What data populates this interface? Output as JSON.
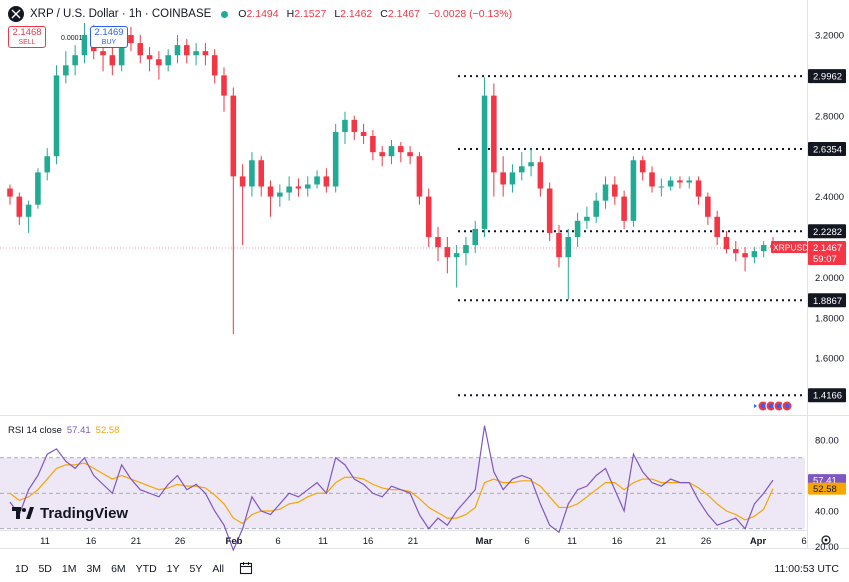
{
  "header": {
    "symbol_title": "XRP / U.S. Dollar · 1h · COINBASE",
    "open_label": "O",
    "open_value": "2.1494",
    "high_label": "H",
    "high_value": "2.1527",
    "low_label": "L",
    "low_value": "2.1462",
    "close_label": "C",
    "close_value": "2.1467",
    "change": "−0.0028 (−0.13%)"
  },
  "trade": {
    "sell_price": "2.1468",
    "sell_label": "SELL",
    "spread": "0.0001",
    "buy_price": "2.1469",
    "buy_label": "BUY"
  },
  "price_axis": [
    "3.2000",
    "2.8000",
    "2.4000",
    "2.0000",
    "1.8000",
    "1.6000"
  ],
  "levels": [
    "2.9962",
    "2.6354",
    "2.2282",
    "1.8867",
    "1.4166"
  ],
  "current_price": {
    "symbol": "XRPUSD",
    "price": "2.1467",
    "countdown": "59:07"
  },
  "rsi": {
    "label": "RSI 14 close",
    "value": "57.41",
    "ma_value": "52.58",
    "axis": [
      "80.00",
      "40.00",
      "20.00"
    ]
  },
  "time_axis": [
    "11",
    "16",
    "21",
    "26",
    "Feb",
    "6",
    "11",
    "16",
    "21",
    "Mar",
    "6",
    "11",
    "16",
    "21",
    "26",
    "Apr",
    "6"
  ],
  "brand": "TradingView",
  "ranges": [
    "1D",
    "5D",
    "1M",
    "3M",
    "6M",
    "YTD",
    "1Y",
    "5Y",
    "All"
  ],
  "clock": "11:00:53 UTC",
  "colors": {
    "up": "#22ab94",
    "down": "#f23645",
    "rsi_line": "#7e57c2",
    "rsi_ma": "#f7a600",
    "rsi_band": "#ede7f6"
  },
  "chart_data": {
    "type": "candlestick",
    "ylim": [
      1.4,
      3.3
    ],
    "x": [
      "Jan 9",
      "Jan 10",
      "Jan 11",
      "Jan 12",
      "Jan 13",
      "Jan 14",
      "Jan 15",
      "Jan 16",
      "Jan 17",
      "Jan 18",
      "Jan 19",
      "Jan 20",
      "Jan 21",
      "Jan 22",
      "Jan 23",
      "Jan 24",
      "Jan 25",
      "Jan 26",
      "Jan 27",
      "Jan 28",
      "Jan 29",
      "Jan 30",
      "Jan 31",
      "Feb 1",
      "Feb 2",
      "Feb 3",
      "Feb 4",
      "Feb 5",
      "Feb 6",
      "Feb 7",
      "Feb 8",
      "Feb 9",
      "Feb 10",
      "Feb 11",
      "Feb 12",
      "Feb 13",
      "Feb 14",
      "Feb 15",
      "Feb 16",
      "Feb 17",
      "Feb 18",
      "Feb 19",
      "Feb 20",
      "Feb 21",
      "Feb 22",
      "Feb 23",
      "Feb 24",
      "Feb 25",
      "Feb 26",
      "Feb 27",
      "Feb 28",
      "Mar 1",
      "Mar 2",
      "Mar 3",
      "Mar 4",
      "Mar 5",
      "Mar 6",
      "Mar 7",
      "Mar 8",
      "Mar 9",
      "Mar 10",
      "Mar 11",
      "Mar 12",
      "Mar 13",
      "Mar 14",
      "Mar 15",
      "Mar 16",
      "Mar 17",
      "Mar 18",
      "Mar 19",
      "Mar 20",
      "Mar 21",
      "Mar 22",
      "Mar 23",
      "Mar 24",
      "Mar 25",
      "Mar 26",
      "Mar 27",
      "Mar 28",
      "Mar 29",
      "Mar 30",
      "Mar 31",
      "Apr 1"
    ],
    "open": [
      2.44,
      2.4,
      2.3,
      2.36,
      2.52,
      2.6,
      3.0,
      3.05,
      3.1,
      3.2,
      3.12,
      3.1,
      3.05,
      3.2,
      3.16,
      3.1,
      3.08,
      3.05,
      3.1,
      3.15,
      3.1,
      3.12,
      3.1,
      3.0,
      2.9,
      2.5,
      2.45,
      2.58,
      2.45,
      2.4,
      2.42,
      2.45,
      2.44,
      2.46,
      2.5,
      2.45,
      2.72,
      2.78,
      2.72,
      2.7,
      2.62,
      2.6,
      2.65,
      2.62,
      2.6,
      2.4,
      2.2,
      2.15,
      2.1,
      2.12,
      2.16,
      2.24,
      2.9,
      2.52,
      2.46,
      2.52,
      2.55,
      2.57,
      2.44,
      2.22,
      2.1,
      2.2,
      2.28,
      2.3,
      2.38,
      2.46,
      2.4,
      2.28,
      2.58,
      2.52,
      2.45,
      2.45,
      2.48,
      2.47,
      2.48,
      2.4,
      2.3,
      2.2,
      2.14,
      2.12,
      2.1,
      2.13,
      2.16
    ],
    "close": [
      2.4,
      2.3,
      2.36,
      2.52,
      2.6,
      3.0,
      3.05,
      3.1,
      3.2,
      3.12,
      3.1,
      3.05,
      3.2,
      3.16,
      3.1,
      3.08,
      3.05,
      3.1,
      3.15,
      3.1,
      3.12,
      3.1,
      3.0,
      2.9,
      2.5,
      2.45,
      2.58,
      2.45,
      2.4,
      2.42,
      2.45,
      2.44,
      2.46,
      2.5,
      2.45,
      2.72,
      2.78,
      2.72,
      2.7,
      2.62,
      2.6,
      2.65,
      2.62,
      2.6,
      2.4,
      2.2,
      2.15,
      2.1,
      2.12,
      2.16,
      2.24,
      2.9,
      2.52,
      2.46,
      2.52,
      2.55,
      2.57,
      2.44,
      2.22,
      2.1,
      2.2,
      2.28,
      2.3,
      2.38,
      2.46,
      2.4,
      2.28,
      2.58,
      2.52,
      2.45,
      2.45,
      2.48,
      2.47,
      2.48,
      2.4,
      2.3,
      2.2,
      2.14,
      2.12,
      2.1,
      2.13,
      2.16,
      2.1467
    ],
    "high": [
      2.46,
      2.42,
      2.38,
      2.54,
      2.64,
      3.05,
      3.12,
      3.15,
      3.26,
      3.25,
      3.16,
      3.14,
      3.24,
      3.24,
      3.2,
      3.14,
      3.12,
      3.13,
      3.2,
      3.18,
      3.16,
      3.16,
      3.13,
      3.04,
      2.94,
      2.56,
      2.62,
      2.6,
      2.48,
      2.46,
      2.5,
      2.49,
      2.5,
      2.53,
      2.54,
      2.76,
      2.82,
      2.8,
      2.76,
      2.73,
      2.65,
      2.68,
      2.67,
      2.65,
      2.62,
      2.44,
      2.25,
      2.2,
      2.16,
      2.2,
      2.28,
      2.99,
      2.96,
      2.6,
      2.56,
      2.62,
      2.64,
      2.6,
      2.47,
      2.26,
      2.24,
      2.32,
      2.35,
      2.42,
      2.5,
      2.5,
      2.43,
      2.6,
      2.6,
      2.55,
      2.49,
      2.5,
      2.5,
      2.5,
      2.5,
      2.42,
      2.33,
      2.23,
      2.18,
      2.15,
      2.15,
      2.18,
      2.2
    ],
    "low": [
      2.36,
      2.26,
      2.22,
      2.34,
      2.48,
      2.56,
      2.96,
      3.0,
      3.06,
      3.08,
      3.02,
      3.0,
      3.02,
      3.12,
      3.06,
      3.02,
      2.98,
      3.02,
      3.06,
      3.06,
      3.05,
      3.05,
      2.96,
      2.82,
      1.72,
      2.16,
      2.4,
      2.4,
      2.3,
      2.35,
      2.38,
      2.4,
      2.4,
      2.44,
      2.42,
      2.42,
      2.66,
      2.68,
      2.66,
      2.58,
      2.55,
      2.56,
      2.57,
      2.56,
      2.36,
      2.15,
      2.08,
      2.02,
      1.95,
      2.06,
      2.12,
      2.2,
      2.4,
      2.4,
      2.42,
      2.48,
      2.5,
      2.4,
      2.18,
      2.05,
      1.89,
      2.15,
      2.24,
      2.27,
      2.34,
      2.36,
      2.24,
      2.25,
      2.48,
      2.42,
      2.4,
      2.43,
      2.44,
      2.44,
      2.36,
      2.26,
      2.16,
      2.12,
      2.08,
      2.03,
      2.07,
      2.1,
      2.12
    ],
    "horizontal_levels": [
      2.9962,
      2.6354,
      2.2282,
      1.8867,
      1.4166
    ],
    "rsi": [
      45,
      38,
      52,
      60,
      72,
      75,
      68,
      64,
      70,
      60,
      55,
      50,
      66,
      58,
      52,
      50,
      48,
      55,
      60,
      52,
      55,
      50,
      40,
      32,
      18,
      30,
      48,
      40,
      38,
      44,
      50,
      48,
      52,
      56,
      50,
      70,
      66,
      58,
      55,
      50,
      48,
      54,
      52,
      50,
      38,
      30,
      36,
      32,
      40,
      46,
      52,
      88,
      62,
      52,
      58,
      60,
      58,
      44,
      32,
      28,
      44,
      52,
      54,
      60,
      64,
      52,
      40,
      72,
      62,
      56,
      54,
      58,
      56,
      56,
      46,
      38,
      32,
      34,
      36,
      30,
      44,
      50,
      57.41
    ],
    "rsi_ma": [
      50,
      46,
      48,
      52,
      58,
      64,
      66,
      66,
      67,
      64,
      61,
      58,
      60,
      58,
      56,
      54,
      52,
      53,
      55,
      54,
      54,
      53,
      49,
      44,
      36,
      33,
      38,
      40,
      40,
      41,
      44,
      45,
      48,
      50,
      50,
      56,
      59,
      59,
      58,
      55,
      53,
      52,
      52,
      51,
      47,
      42,
      39,
      36,
      36,
      38,
      42,
      56,
      58,
      56,
      56,
      57,
      57,
      54,
      48,
      42,
      42,
      44,
      48,
      52,
      56,
      56,
      52,
      56,
      58,
      58,
      56,
      56,
      56,
      56,
      53,
      49,
      44,
      40,
      38,
      35,
      37,
      41,
      52.58
    ],
    "rsi_band": [
      30,
      70
    ],
    "rsi_ylim": [
      10,
      95
    ]
  }
}
